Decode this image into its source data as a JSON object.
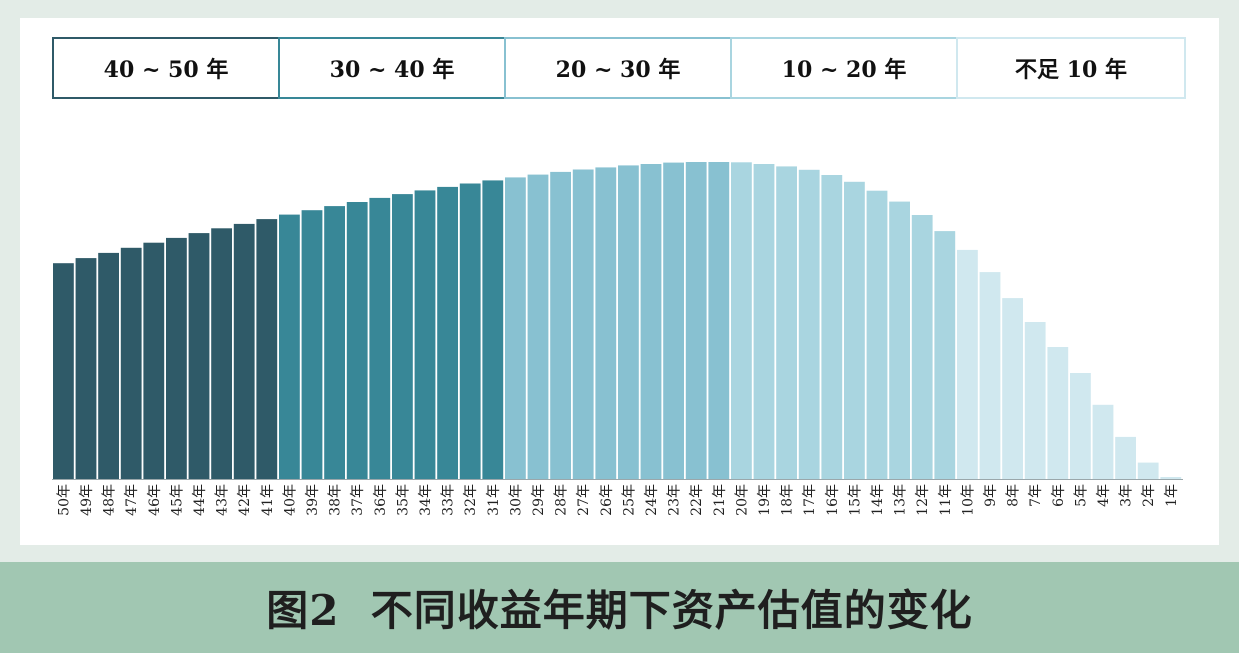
{
  "figure": {
    "caption": "图2  不同收益年期下资产估值的变化"
  },
  "legend": [
    {
      "label": "40 ~ 50 年",
      "color": "#2f5a68"
    },
    {
      "label": "30 ~ 40 年",
      "color": "#388797"
    },
    {
      "label": "20 ~ 30 年",
      "color": "#88c1d1"
    },
    {
      "label": "10 ~ 20 年",
      "color": "#a9d5e0"
    },
    {
      "label": "不足 10 年",
      "color": "#d0e8ef"
    }
  ],
  "chart_data": {
    "type": "bar",
    "title": "",
    "xlabel": "",
    "ylabel": "",
    "grid": false,
    "legend_position": "top",
    "ylim": [
      0,
      100
    ],
    "categories": [
      "50年",
      "49年",
      "48年",
      "47年",
      "46年",
      "45年",
      "44年",
      "43年",
      "42年",
      "41年",
      "40年",
      "39年",
      "38年",
      "37年",
      "36年",
      "35年",
      "34年",
      "33年",
      "32年",
      "31年",
      "30年",
      "29年",
      "28年",
      "27年",
      "26年",
      "25年",
      "24年",
      "23年",
      "22年",
      "21年",
      "20年",
      "19年",
      "18年",
      "17年",
      "16年",
      "15年",
      "14年",
      "13年",
      "12年",
      "11年",
      "10年",
      "9年",
      "8年",
      "7年",
      "6年",
      "5年",
      "4年",
      "3年",
      "2年",
      "1年"
    ],
    "values": [
      63.1,
      64.6,
      66.1,
      67.6,
      69.1,
      70.5,
      71.9,
      73.3,
      74.6,
      76.0,
      77.3,
      78.6,
      79.8,
      81.0,
      82.2,
      83.3,
      84.4,
      85.4,
      86.4,
      87.3,
      88.2,
      89.0,
      89.8,
      90.5,
      91.1,
      91.7,
      92.1,
      92.5,
      92.7,
      92.7,
      92.6,
      92.1,
      91.4,
      90.4,
      88.9,
      86.9,
      84.3,
      81.1,
      77.2,
      72.5,
      67.0,
      60.5,
      52.9,
      45.9,
      38.6,
      31.0,
      21.7,
      12.3,
      4.8,
      0.0
    ],
    "colors": [
      "#2f5a68",
      "#388797",
      "#88c1d1",
      "#a9d5e0",
      "#d0e8ef"
    ],
    "group_sizes": [
      10,
      10,
      10,
      10,
      10
    ]
  }
}
